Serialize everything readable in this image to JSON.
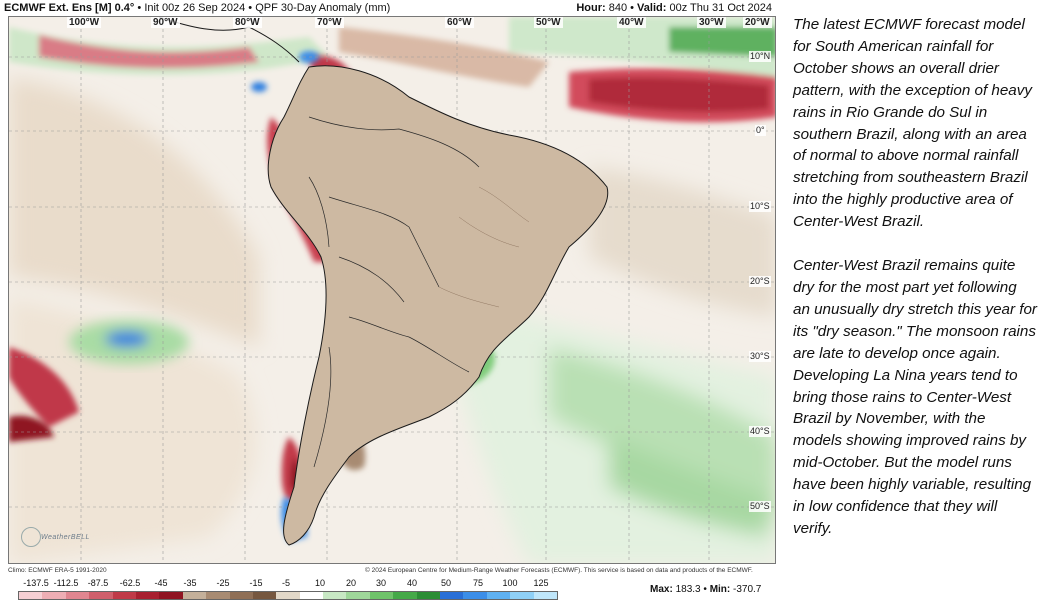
{
  "header": {
    "model": "ECMWF Ext. Ens [M]",
    "resolution": "0.4°",
    "init": "Init 00z 26 Sep 2024",
    "product": "QPF 30-Day Anomaly (mm)",
    "hour_label": "Hour:",
    "hour_value": "840",
    "valid_label": "Valid:",
    "valid_value": "00z Thu 31 Oct 2024",
    "separator": "•"
  },
  "longitude_labels": [
    "100°W",
    "90°W",
    "80°W",
    "70°W",
    "60°W",
    "50°W",
    "40°W",
    "30°W",
    "20°W"
  ],
  "latitude_labels": [
    "10°N",
    "0°",
    "10°S",
    "20°S",
    "30°S",
    "40°S",
    "50°S"
  ],
  "footer": {
    "climo": "Climo: ECMWF ERA-5 1991-2020",
    "copyright": "© 2024 European Centre for Medium-Range Weather Forecasts (ECMWF). This service is based on data and products of the ECMWF."
  },
  "logo_text": "WeatherBELL",
  "colorbar": {
    "ticks": [
      "-137.5",
      "-112.5",
      "-87.5",
      "-62.5",
      "-45",
      "-35",
      "-25",
      "-15",
      "-5",
      "10",
      "20",
      "30",
      "40",
      "50",
      "75",
      "100",
      "125"
    ],
    "colors": [
      "#f6d0d4",
      "#eeaeb4",
      "#e08690",
      "#d0606c",
      "#c03a48",
      "#a82030",
      "#8f1422",
      "#c4b09a",
      "#a88b72",
      "#8f6f56",
      "#76573f",
      "#e2d8c8",
      "#ffffff",
      "#c8e8c4",
      "#9fd79a",
      "#6fc36a",
      "#45a948",
      "#2c8d35",
      "#2a6fd6",
      "#3c8ee8",
      "#5fb1f2",
      "#8fd0f6",
      "#bfe6fa"
    ]
  },
  "stats": {
    "max_label": "Max:",
    "max_value": "183.3",
    "min_label": "Min:",
    "min_value": "-370.7"
  },
  "legend_colors": {
    "dry_strong": "#b8283a",
    "dry_moderate": "#9a7a62",
    "dry_light": "#e6d8c6",
    "wet_light": "#a9dca4",
    "wet_moderate": "#5cb85e",
    "wet_strong": "#2f7fe0",
    "ocean_base": "#f7f3ee",
    "land_base": "#cdb9a2"
  },
  "side_text": {
    "paragraph_1": "The latest ECMWF forecast model for South American rainfall for October shows an overall drier pattern, with the exception of heavy rains in Rio Grande do Sul in southern Brazil, along with an area of normal to above normal rainfall stretching from southeastern Brazil into the highly productive area of Center-West Brazil.",
    "paragraph_2": "Center-West Brazil remains quite dry for the most part yet following an unusually dry stretch this year for its \"dry season.\" The monsoon rains are late to develop once again. Developing La Nina years tend to bring those rains to Center-West Brazil by November, with the models showing improved rains by mid-October. But the model runs have been highly variable, resulting in low confidence that they will verify."
  }
}
